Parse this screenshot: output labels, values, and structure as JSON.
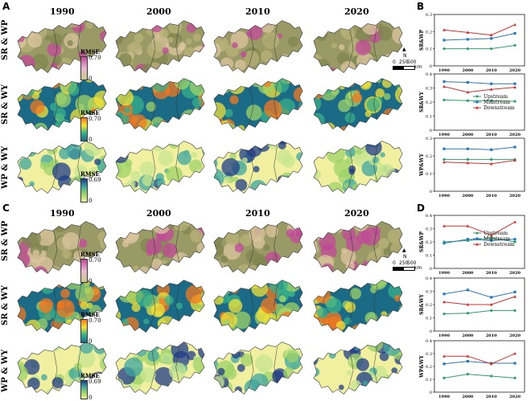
{
  "panels": {
    "A": "A",
    "B": "B",
    "C": "C",
    "D": "D"
  },
  "years": [
    "1990",
    "2000",
    "2010",
    "2020"
  ],
  "row_labels": [
    "SR & WP",
    "SR & WY",
    "WP & WY"
  ],
  "legends": [
    {
      "title": "RMSE",
      "max": "0.70",
      "min": "0",
      "colors": [
        "#c2489a",
        "#e6b8cf",
        "#c9c98a"
      ]
    },
    {
      "title": "RMSE",
      "max": "0.70",
      "min": "0",
      "colors": [
        "#f47a1f",
        "#f2e33a",
        "#38b08a",
        "#1b6a86"
      ]
    },
    {
      "title": "RMSE",
      "max": "0.69",
      "min": "0",
      "colors": [
        "#1f3c88",
        "#3fa6a0",
        "#9fd36a",
        "#f0f0a0"
      ]
    }
  ],
  "scalebar": {
    "north": "N",
    "ticks": [
      "0",
      "250",
      "500"
    ],
    "unit": "km"
  },
  "chart_data": [
    {
      "panel": "B",
      "type": "line",
      "ylabel": "SR&WP",
      "x": [
        "1990",
        "2000",
        "2010",
        "2020"
      ],
      "ylim": [
        0,
        0.3
      ],
      "yticks": [
        "0",
        "0.1",
        "0.2",
        "0.3"
      ],
      "series": [
        {
          "name": "Upstream",
          "color": "#2e9e6b",
          "marker": "circle",
          "values": [
            0.1,
            0.1,
            0.1,
            0.12
          ]
        },
        {
          "name": "Midstream",
          "color": "#2a7ab8",
          "marker": "square",
          "values": [
            0.15,
            0.155,
            0.16,
            0.19
          ]
        },
        {
          "name": "Downstream",
          "color": "#d0312d",
          "marker": "triangle",
          "values": [
            0.21,
            0.195,
            0.18,
            0.24
          ]
        }
      ]
    },
    {
      "panel": "B",
      "type": "line",
      "ylabel": "SR&WY",
      "x": [
        "1990",
        "2000",
        "2010",
        "2020"
      ],
      "ylim": [
        0,
        0.4
      ],
      "yticks": [
        "0",
        "0.1",
        "0.2",
        "0.3",
        "0.4"
      ],
      "legend": [
        "Upstream",
        "Midstream",
        "Downstream"
      ],
      "series": [
        {
          "name": "Upstream",
          "color": "#2e9e6b",
          "marker": "circle",
          "values": [
            0.215,
            0.21,
            0.21,
            0.205
          ]
        },
        {
          "name": "Midstream",
          "color": "#2a7ab8",
          "marker": "square",
          "values": [
            0.345,
            0.34,
            0.33,
            0.33
          ]
        },
        {
          "name": "Downstream",
          "color": "#d0312d",
          "marker": "triangle",
          "values": [
            0.31,
            0.27,
            0.29,
            0.305
          ]
        }
      ]
    },
    {
      "panel": "B",
      "type": "line",
      "ylabel": "WP&WY",
      "x": [
        "1990",
        "2000",
        "2010",
        "2020"
      ],
      "ylim": [
        0,
        0.3
      ],
      "yticks": [
        "0",
        "0.1",
        "0.2",
        "0.3"
      ],
      "series": [
        {
          "name": "Upstream",
          "color": "#2e9e6b",
          "marker": "circle",
          "values": [
            0.18,
            0.18,
            0.18,
            0.18
          ]
        },
        {
          "name": "Midstream",
          "color": "#2a7ab8",
          "marker": "square",
          "values": [
            0.24,
            0.24,
            0.235,
            0.25
          ]
        },
        {
          "name": "Downstream",
          "color": "#d0312d",
          "marker": "triangle",
          "values": [
            0.165,
            0.16,
            0.155,
            0.175
          ]
        }
      ]
    },
    {
      "panel": "D",
      "type": "line",
      "ylabel": "SR&WP",
      "x": [
        "1990",
        "2000",
        "2010",
        "2020"
      ],
      "ylim": [
        0,
        0.4
      ],
      "yticks": [
        "0",
        "0.1",
        "0.2",
        "0.3",
        "0.4"
      ],
      "legend": [
        "Upstream",
        "Midstream",
        "Downstream"
      ],
      "series": [
        {
          "name": "Upstream",
          "color": "#2e9e6b",
          "marker": "circle",
          "values": [
            0.2,
            0.21,
            0.23,
            0.2
          ]
        },
        {
          "name": "Midstream",
          "color": "#2a7ab8",
          "marker": "square",
          "values": [
            0.19,
            0.22,
            0.21,
            0.22
          ]
        },
        {
          "name": "Downstream",
          "color": "#d0312d",
          "marker": "triangle",
          "values": [
            0.32,
            0.32,
            0.25,
            0.35
          ]
        }
      ]
    },
    {
      "panel": "D",
      "type": "line",
      "ylabel": "SR&WY",
      "x": [
        "1990",
        "2000",
        "2010",
        "2020"
      ],
      "ylim": [
        0,
        0.4
      ],
      "yticks": [
        "0",
        "0.1",
        "0.2",
        "0.3",
        "0.4"
      ],
      "series": [
        {
          "name": "Upstream",
          "color": "#2e9e6b",
          "marker": "circle",
          "values": [
            0.13,
            0.135,
            0.155,
            0.155
          ]
        },
        {
          "name": "Midstream",
          "color": "#2a7ab8",
          "marker": "square",
          "values": [
            0.28,
            0.31,
            0.255,
            0.295
          ]
        },
        {
          "name": "Downstream",
          "color": "#d0312d",
          "marker": "triangle",
          "values": [
            0.22,
            0.2,
            0.2,
            0.26
          ]
        }
      ]
    },
    {
      "panel": "D",
      "type": "line",
      "ylabel": "WP&WY",
      "x": [
        "1990",
        "2000",
        "2010",
        "2020"
      ],
      "ylim": [
        0,
        0.4
      ],
      "yticks": [
        "0",
        "0.1",
        "0.2",
        "0.3",
        "0.4"
      ],
      "series": [
        {
          "name": "Upstream",
          "color": "#2e9e6b",
          "marker": "circle",
          "values": [
            0.11,
            0.14,
            0.125,
            0.11
          ]
        },
        {
          "name": "Midstream",
          "color": "#2a7ab8",
          "marker": "square",
          "values": [
            0.22,
            0.24,
            0.225,
            0.225
          ]
        },
        {
          "name": "Downstream",
          "color": "#d0312d",
          "marker": "triangle",
          "values": [
            0.28,
            0.28,
            0.22,
            0.3
          ]
        }
      ]
    }
  ]
}
